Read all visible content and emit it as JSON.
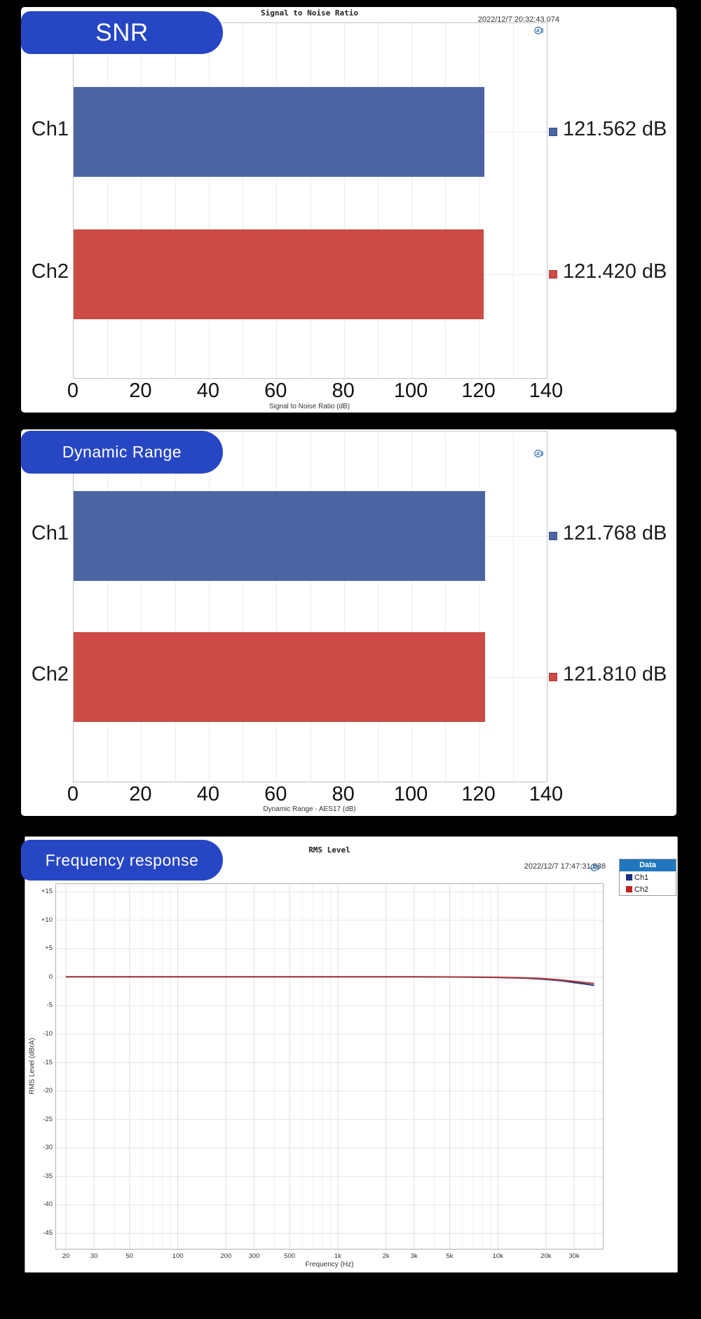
{
  "colors": {
    "background": "#000000",
    "panel": "#ffffff",
    "badge_blue": "#2746c4",
    "bar_blue": "#4d64a3",
    "bar_red": "#cc4b47",
    "legend_header_blue": "#2077bd",
    "legend_ch1_navy": "#1b2d7d",
    "legend_ch2_red": "#c1211f",
    "curve_ch1": "#2a3a78",
    "curve_ch2": "#b03a3d",
    "ap_logo_blue": "#2e6db4"
  },
  "chart_data": [
    {
      "type": "bar",
      "orientation": "horizontal",
      "badge": "SNR",
      "title": "Signal to Noise Ratio",
      "timestamp": "2022/12/7 20:32:43.074",
      "categories": [
        "Ch1",
        "Ch2"
      ],
      "values": [
        121.562,
        121.42
      ],
      "value_labels": [
        "121.562 dB",
        "121.420 dB"
      ],
      "bar_colors": [
        "#4d64a3",
        "#cc4b47"
      ],
      "marker_borders": [
        "#39508c",
        "#a93d3a"
      ],
      "xlabel": "Signal to Noise Ratio (dB)",
      "xlim": [
        0,
        140
      ],
      "xticks": [
        0,
        20,
        40,
        60,
        80,
        100,
        120,
        140
      ],
      "grid": true,
      "legend_position": "none"
    },
    {
      "type": "bar",
      "orientation": "horizontal",
      "badge": "Dynamic Range",
      "title": "",
      "timestamp": "",
      "categories": [
        "Ch1",
        "Ch2"
      ],
      "values": [
        121.768,
        121.81
      ],
      "value_labels": [
        "121.768 dB",
        "121.810 dB"
      ],
      "bar_colors": [
        "#4d64a3",
        "#cc4b47"
      ],
      "marker_borders": [
        "#39508c",
        "#a93d3a"
      ],
      "xlabel": "Dynamic Range - AES17 (dB)",
      "xlim": [
        0,
        140
      ],
      "xticks": [
        0,
        20,
        40,
        60,
        80,
        100,
        120,
        140
      ],
      "grid": true,
      "legend_position": "none"
    },
    {
      "type": "line",
      "badge": "Frequency response",
      "title": "RMS Level",
      "timestamp": "2022/12/7 17:47:31.638",
      "xlabel": "Frequency (Hz)",
      "ylabel": "RMS Level (dBrA)",
      "xscale": "log",
      "xlim": [
        20,
        45000
      ],
      "ylim": [
        -47.8,
        16.5
      ],
      "xtick_values": [
        20,
        30,
        50,
        100,
        200,
        300,
        500,
        1000,
        2000,
        3000,
        5000,
        10000,
        20000,
        30000
      ],
      "xtick_labels": [
        "20",
        "30",
        "50",
        "100",
        "200",
        "300",
        "500",
        "1k",
        "2k",
        "3k",
        "5k",
        "10k",
        "20k",
        "30k"
      ],
      "ytick_values": [
        15,
        10,
        5,
        0,
        -5,
        -10,
        -15,
        -20,
        -25,
        -30,
        -35,
        -40,
        -45
      ],
      "ytick_labels": [
        "+15",
        "+10",
        "+5",
        "0",
        "-5",
        "-10",
        "-15",
        "-20",
        "-25",
        "-30",
        "-35",
        "-40",
        "-45"
      ],
      "grid": true,
      "legend": {
        "header": "Data",
        "position": "outside-top-right",
        "entries": [
          {
            "label": "Ch1",
            "color": "#1b2d7d"
          },
          {
            "label": "Ch2",
            "color": "#c1211f"
          }
        ]
      },
      "series": [
        {
          "name": "Ch1",
          "color": "#2a3a78",
          "points": [
            [
              20,
              0.05
            ],
            [
              50,
              0.07
            ],
            [
              100,
              0.07
            ],
            [
              300,
              0.07
            ],
            [
              1000,
              0.07
            ],
            [
              3000,
              0.05
            ],
            [
              6000,
              0.02
            ],
            [
              10000,
              -0.05
            ],
            [
              14000,
              -0.15
            ],
            [
              18000,
              -0.3
            ],
            [
              22000,
              -0.5
            ],
            [
              26000,
              -0.7
            ],
            [
              30000,
              -0.95
            ],
            [
              35000,
              -1.2
            ],
            [
              40000,
              -1.45
            ]
          ]
        },
        {
          "name": "Ch2",
          "color": "#b03a3d",
          "points": [
            [
              20,
              0.05
            ],
            [
              50,
              0.07
            ],
            [
              100,
              0.07
            ],
            [
              300,
              0.07
            ],
            [
              1000,
              0.07
            ],
            [
              3000,
              0.05
            ],
            [
              6000,
              0.03
            ],
            [
              10000,
              -0.02
            ],
            [
              14000,
              -0.1
            ],
            [
              18000,
              -0.22
            ],
            [
              22000,
              -0.38
            ],
            [
              26000,
              -0.55
            ],
            [
              30000,
              -0.75
            ],
            [
              35000,
              -0.95
            ],
            [
              40000,
              -1.1
            ]
          ]
        }
      ]
    }
  ]
}
